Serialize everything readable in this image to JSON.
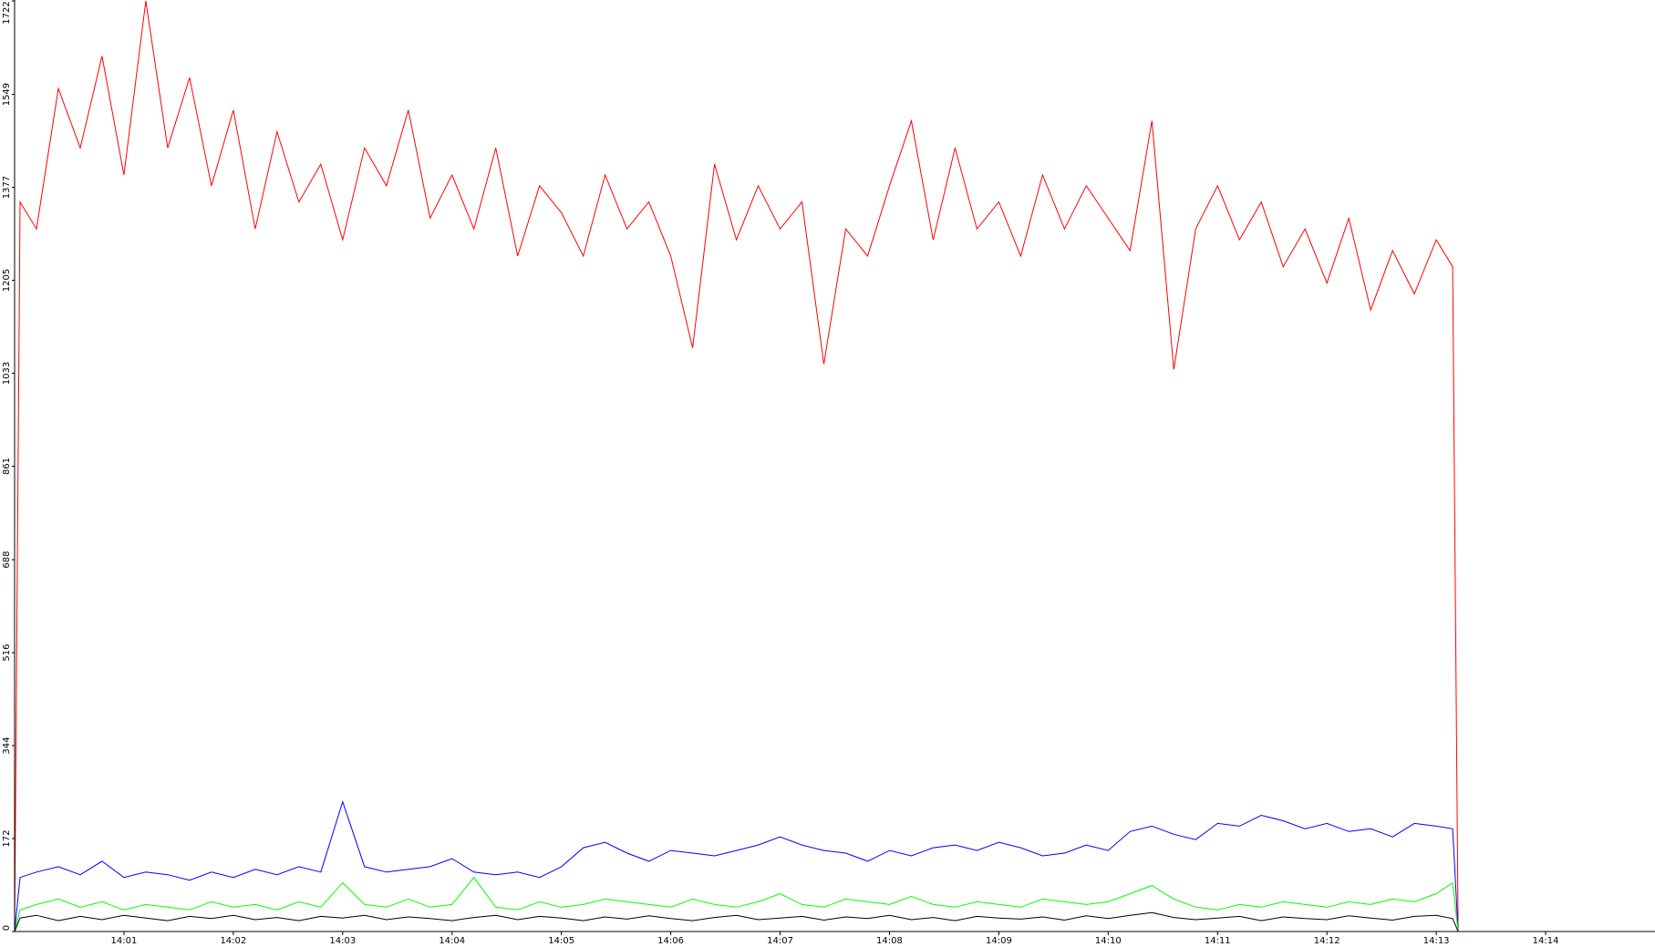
{
  "chart_data": {
    "type": "line",
    "x": [
      840,
      840.05,
      840.2,
      840.4,
      840.6,
      840.8,
      841,
      841.2,
      841.4,
      841.6,
      841.8,
      842,
      842.2,
      842.4,
      842.6,
      842.8,
      843,
      843.2,
      843.4,
      843.6,
      843.8,
      844,
      844.2,
      844.4,
      844.6,
      844.8,
      845,
      845.2,
      845.4,
      845.6,
      845.8,
      846,
      846.2,
      846.4,
      846.6,
      846.8,
      847,
      847.2,
      847.4,
      847.6,
      847.8,
      848,
      848.2,
      848.4,
      848.6,
      848.8,
      849,
      849.2,
      849.4,
      849.6,
      849.8,
      850,
      850.2,
      850.4,
      850.6,
      850.8,
      851,
      851.2,
      851.4,
      851.6,
      851.8,
      852,
      852.2,
      852.4,
      852.6,
      852.8,
      853,
      853.15,
      853.2
    ],
    "series": [
      {
        "color": "#ff0000",
        "values": [
          0,
          1350,
          1300,
          1560,
          1450,
          1620,
          1400,
          1722,
          1450,
          1580,
          1380,
          1520,
          1300,
          1480,
          1350,
          1420,
          1280,
          1450,
          1380,
          1520,
          1320,
          1400,
          1300,
          1450,
          1250,
          1380,
          1330,
          1250,
          1400,
          1300,
          1350,
          1250,
          1080,
          1420,
          1280,
          1380,
          1300,
          1350,
          1050,
          1300,
          1250,
          1380,
          1500,
          1280,
          1450,
          1300,
          1350,
          1250,
          1400,
          1300,
          1380,
          1320,
          1260,
          1500,
          1040,
          1300,
          1380,
          1280,
          1350,
          1230,
          1300,
          1200,
          1320,
          1150,
          1260,
          1180,
          1280,
          1230,
          0
        ]
      },
      {
        "color": "#0000ff",
        "values": [
          0,
          100,
          110,
          120,
          105,
          130,
          100,
          110,
          105,
          95,
          110,
          100,
          115,
          105,
          120,
          110,
          240,
          120,
          110,
          115,
          120,
          135,
          110,
          105,
          110,
          100,
          120,
          155,
          165,
          145,
          130,
          150,
          145,
          140,
          150,
          160,
          175,
          160,
          150,
          145,
          130,
          150,
          140,
          155,
          160,
          150,
          165,
          155,
          140,
          145,
          160,
          150,
          185,
          195,
          180,
          170,
          200,
          195,
          215,
          205,
          190,
          200,
          185,
          190,
          175,
          200,
          195,
          190,
          0
        ]
      },
      {
        "color": "#00ff00",
        "values": [
          0,
          40,
          50,
          60,
          45,
          55,
          40,
          50,
          45,
          40,
          55,
          45,
          50,
          40,
          55,
          45,
          90,
          50,
          45,
          60,
          45,
          50,
          100,
          45,
          40,
          55,
          45,
          50,
          60,
          55,
          50,
          45,
          60,
          50,
          45,
          55,
          70,
          50,
          45,
          60,
          55,
          50,
          65,
          50,
          45,
          55,
          50,
          45,
          60,
          55,
          50,
          55,
          70,
          85,
          60,
          45,
          40,
          50,
          45,
          55,
          50,
          45,
          55,
          50,
          60,
          55,
          70,
          90,
          0
        ]
      },
      {
        "color": "#000000",
        "values": [
          0,
          25,
          30,
          20,
          28,
          22,
          30,
          25,
          20,
          28,
          24,
          30,
          22,
          26,
          20,
          28,
          25,
          30,
          22,
          27,
          24,
          20,
          26,
          30,
          22,
          28,
          25,
          20,
          27,
          23,
          29,
          24,
          20,
          26,
          30,
          22,
          25,
          28,
          21,
          27,
          24,
          30,
          22,
          26,
          20,
          28,
          25,
          23,
          27,
          21,
          29,
          24,
          30,
          35,
          26,
          22,
          25,
          28,
          20,
          27,
          24,
          22,
          29,
          25,
          21,
          28,
          30,
          24,
          0
        ]
      }
    ],
    "xlim": [
      840,
      855
    ],
    "xticks": [
      {
        "value": 841,
        "label": "14:01"
      },
      {
        "value": 842,
        "label": "14:02"
      },
      {
        "value": 843,
        "label": "14:03"
      },
      {
        "value": 844,
        "label": "14:04"
      },
      {
        "value": 845,
        "label": "14:05"
      },
      {
        "value": 846,
        "label": "14:06"
      },
      {
        "value": 847,
        "label": "14:07"
      },
      {
        "value": 848,
        "label": "14:08"
      },
      {
        "value": 849,
        "label": "14:09"
      },
      {
        "value": 850,
        "label": "14:10"
      },
      {
        "value": 851,
        "label": "14:11"
      },
      {
        "value": 852,
        "label": "14:12"
      },
      {
        "value": 853,
        "label": "14:13"
      },
      {
        "value": 854,
        "label": "14:14"
      }
    ],
    "ylim": [
      0,
      1722
    ],
    "yticks": [
      0,
      172,
      344,
      516,
      688,
      861,
      1033,
      1205,
      1377,
      1549,
      1722
    ],
    "grid": false
  }
}
